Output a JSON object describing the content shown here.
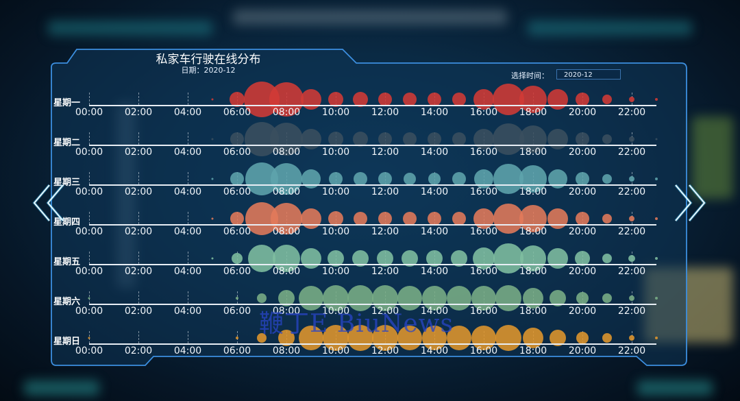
{
  "header": {
    "title": "私家车行驶在线分布",
    "date_label": "日期：2020-12",
    "time_picker_label": "选择时间：",
    "time_picker_value": "2020-12"
  },
  "navigation": {
    "prev_icon": "double-chevron-left-icon",
    "next_icon": "double-chevron-right-icon"
  },
  "watermark": "鞭丁E BiuNews",
  "colors": {
    "frame": "#3c8fe0",
    "baseline": "#e8eef5",
    "monday": "#d23a35",
    "tuesday": "#3a4e5e",
    "wednesday": "#5ea4ac",
    "thursday": "#e27a5a",
    "friday": "#7fbea0",
    "saturday": "#7aae86",
    "sunday": "#e0962c"
  },
  "chart_data": {
    "type": "scatter",
    "subtype": "single-axis bubble (one row per weekday)",
    "title": "私家车行驶在线分布",
    "subtitle": "日期：2020-12",
    "x": [
      0,
      1,
      2,
      3,
      4,
      5,
      6,
      7,
      8,
      9,
      10,
      11,
      12,
      13,
      14,
      15,
      16,
      17,
      18,
      19,
      20,
      21,
      22,
      23
    ],
    "x_tick_labels": [
      "00:00",
      "02:00",
      "04:00",
      "06:00",
      "08:00",
      "10:00",
      "12:00",
      "14:00",
      "16:00",
      "18:00",
      "20:00",
      "22:00"
    ],
    "xlabel": "",
    "ylabel": "",
    "grid": false,
    "value_note": "values are relative bubble sizes (radius, px) read from the figure",
    "series": [
      {
        "name": "星期一",
        "color": "#d23a35",
        "values": [
          0,
          0,
          0,
          0,
          0,
          1.5,
          11,
          26,
          25,
          15,
          11,
          11,
          10,
          10,
          10,
          10,
          15,
          23,
          20,
          15,
          10,
          7,
          4,
          2
        ]
      },
      {
        "name": "星期二",
        "color": "#3a4e5e",
        "values": [
          0,
          0,
          0,
          0,
          0,
          1,
          10,
          25,
          24,
          15,
          11,
          11,
          10,
          10,
          10,
          10,
          15,
          23,
          20,
          15,
          10,
          7,
          4,
          1
        ]
      },
      {
        "name": "星期三",
        "color": "#5ea4ac",
        "values": [
          0,
          0,
          0,
          0,
          0,
          1.5,
          10,
          24,
          23,
          14,
          10,
          10,
          10,
          9,
          9,
          10,
          14,
          22,
          20,
          14,
          10,
          7,
          4,
          2
        ]
      },
      {
        "name": "星期四",
        "color": "#e27a5a",
        "values": [
          0,
          0,
          0,
          0,
          0,
          1.5,
          10,
          24,
          23,
          15,
          11,
          10,
          10,
          10,
          10,
          10,
          15,
          22,
          20,
          15,
          10,
          7,
          4,
          2
        ]
      },
      {
        "name": "星期五",
        "color": "#7fbea0",
        "values": [
          0,
          0,
          0,
          0,
          0,
          1.5,
          8,
          20,
          20,
          15,
          12,
          12,
          12,
          12,
          12,
          12,
          16,
          22,
          19,
          15,
          11,
          7,
          5,
          2
        ]
      },
      {
        "name": "星期六",
        "color": "#7aae86",
        "values": [
          1,
          0,
          0,
          0,
          0,
          0,
          2,
          7,
          12,
          18,
          19,
          19,
          19,
          18,
          18,
          18,
          18,
          19,
          15,
          12,
          9,
          7,
          4,
          2
        ]
      },
      {
        "name": "星期日",
        "color": "#e0962c",
        "values": [
          1,
          0,
          0,
          0,
          0,
          0,
          2,
          7,
          12,
          18,
          19,
          19,
          19,
          18,
          18,
          18,
          18,
          19,
          15,
          12,
          9,
          7,
          4,
          2
        ]
      }
    ]
  }
}
